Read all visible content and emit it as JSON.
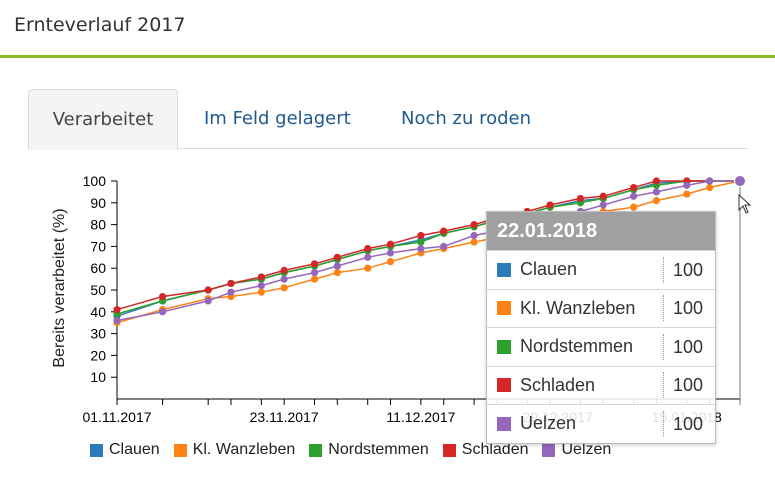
{
  "header": {
    "title": "Ernteverlauf 2017"
  },
  "tabs": [
    {
      "label": "Verarbeitet",
      "active": true
    },
    {
      "label": "Im Feld gelagert",
      "active": false
    },
    {
      "label": "Noch zu roden",
      "active": false
    }
  ],
  "chart_data": {
    "type": "line",
    "ylabel": "Bereits verarbeitet (%)",
    "xlabel": "",
    "ylim": [
      0,
      100
    ],
    "yticks": [
      10,
      20,
      30,
      40,
      50,
      60,
      70,
      80,
      90,
      100
    ],
    "xlim": [
      "2017-11-01",
      "2018-01-22"
    ],
    "xtick_labels": [
      "01.11.2017",
      "23.11.2017",
      "11.12.2017",
      "29.12.2017",
      "15.01.2018"
    ],
    "grid": false,
    "legend_position": "bottom",
    "x": [
      "2017-11-01",
      "2017-11-07",
      "2017-11-13",
      "2017-11-16",
      "2017-11-20",
      "2017-11-23",
      "2017-11-27",
      "2017-11-30",
      "2017-12-04",
      "2017-12-07",
      "2017-12-11",
      "2017-12-14",
      "2017-12-18",
      "2017-12-21",
      "2017-12-25",
      "2017-12-28",
      "2018-01-01",
      "2018-01-04",
      "2018-01-08",
      "2018-01-11",
      "2018-01-15",
      "2018-01-18",
      "2018-01-22"
    ],
    "series": [
      {
        "name": "Clauen",
        "color": "#2b7bba",
        "values": [
          38,
          45,
          50,
          53,
          55,
          58,
          61,
          64,
          68,
          70,
          73,
          76,
          79,
          82,
          85,
          88,
          91,
          92,
          96,
          99,
          100,
          100,
          100
        ]
      },
      {
        "name": "Kl. Wanzleben",
        "color": "#ff8214",
        "values": [
          35,
          41,
          46,
          47,
          49,
          51,
          55,
          58,
          60,
          63,
          67,
          69,
          72,
          74,
          77,
          80,
          83,
          86,
          88,
          91,
          94,
          97,
          100
        ]
      },
      {
        "name": "Nordstemmen",
        "color": "#2ca02c",
        "values": [
          39,
          45,
          50,
          53,
          55,
          58,
          61,
          64,
          68,
          70,
          72,
          76,
          79,
          82,
          85,
          88,
          90,
          92,
          96,
          98,
          100,
          100,
          100
        ]
      },
      {
        "name": "Schladen",
        "color": "#d62728",
        "values": [
          41,
          47,
          50,
          53,
          56,
          59,
          62,
          65,
          69,
          71,
          75,
          77,
          80,
          83,
          86,
          89,
          92,
          93,
          97,
          100,
          100,
          100,
          100
        ]
      },
      {
        "name": "Uelzen",
        "color": "#9467bd",
        "values": [
          36,
          40,
          45,
          49,
          52,
          55,
          58,
          61,
          65,
          67,
          69,
          70,
          75,
          77,
          80,
          82,
          86,
          89,
          93,
          95,
          98,
          100,
          100
        ]
      }
    ]
  },
  "tooltip": {
    "title": "22.01.2018",
    "rows": [
      {
        "name": "Clauen",
        "value": "100",
        "color": "#2b7bba"
      },
      {
        "name": "Kl. Wanzleben",
        "value": "100",
        "color": "#ff8214"
      },
      {
        "name": "Nordstemmen",
        "value": "100",
        "color": "#2ca02c"
      },
      {
        "name": "Schladen",
        "value": "100",
        "color": "#d62728"
      },
      {
        "name": "Uelzen",
        "value": "100",
        "color": "#9467bd"
      }
    ]
  },
  "icons": {
    "cursor": "mouse-pointer-icon"
  }
}
